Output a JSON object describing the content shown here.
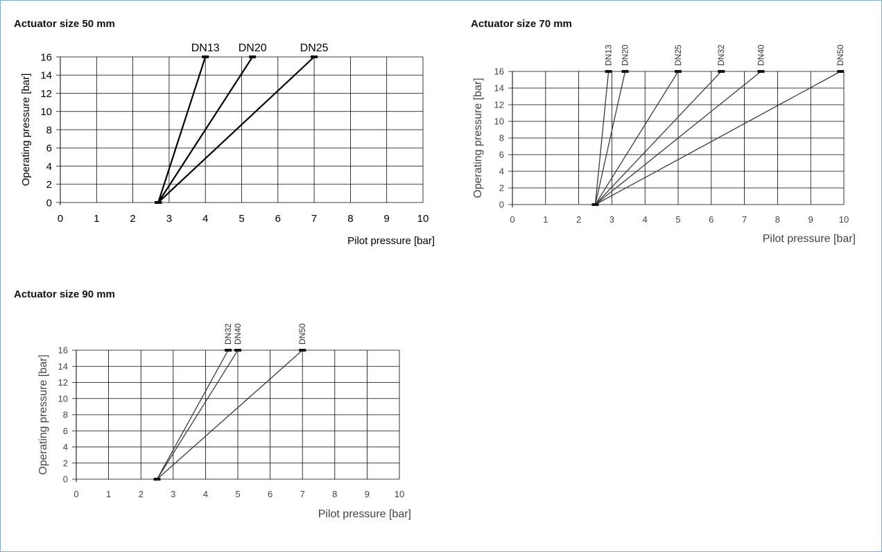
{
  "colors": {
    "frame": "#7fa8c9",
    "grid": "#000000"
  },
  "chart_data": [
    {
      "type": "line",
      "title": "Actuator size 50 mm",
      "xlabel": "Pilot pressure [bar]",
      "ylabel": "Operating pressure [bar]",
      "xlim": [
        0,
        10
      ],
      "ylim": [
        0,
        16
      ],
      "x_ticks": [
        "0",
        "1",
        "2",
        "3",
        "4",
        "5",
        "6",
        "7",
        "8",
        "9",
        "10"
      ],
      "y_ticks": [
        "0",
        "2",
        "4",
        "6",
        "8",
        "10",
        "12",
        "14",
        "16"
      ],
      "grid": true,
      "series_label_orientation": "horizontal",
      "series": [
        {
          "name": "DN13",
          "x": [
            2.7,
            4.0
          ],
          "y": [
            0,
            16
          ]
        },
        {
          "name": "DN20",
          "x": [
            2.7,
            5.3
          ],
          "y": [
            0,
            16
          ]
        },
        {
          "name": "DN25",
          "x": [
            2.7,
            7.0
          ],
          "y": [
            0,
            16
          ]
        }
      ]
    },
    {
      "type": "line",
      "title": "Actuator size 70 mm",
      "xlabel": "Pilot pressure [bar]",
      "ylabel": "Operating pressure [bar]",
      "xlim": [
        0,
        10
      ],
      "ylim": [
        0,
        16
      ],
      "x_ticks": [
        "0",
        "1",
        "2",
        "3",
        "4",
        "5",
        "6",
        "7",
        "8",
        "9",
        "10"
      ],
      "y_ticks": [
        "0",
        "2",
        "4",
        "6",
        "8",
        "10",
        "12",
        "14",
        "16"
      ],
      "grid": true,
      "series_label_orientation": "vertical",
      "series": [
        {
          "name": "DN13",
          "x": [
            2.5,
            2.9
          ],
          "y": [
            0,
            16
          ]
        },
        {
          "name": "DN20",
          "x": [
            2.5,
            3.4
          ],
          "y": [
            0,
            16
          ]
        },
        {
          "name": "DN25",
          "x": [
            2.5,
            5.0
          ],
          "y": [
            0,
            16
          ]
        },
        {
          "name": "DN32",
          "x": [
            2.5,
            6.3
          ],
          "y": [
            0,
            16
          ]
        },
        {
          "name": "DN40",
          "x": [
            2.5,
            7.5
          ],
          "y": [
            0,
            16
          ]
        },
        {
          "name": "DN50",
          "x": [
            2.5,
            9.9
          ],
          "y": [
            0,
            16
          ]
        }
      ]
    },
    {
      "type": "line",
      "title": "Actuator size 90 mm",
      "xlabel": "Pilot pressure [bar]",
      "ylabel": "Operating pressure [bar]",
      "xlim": [
        0,
        10
      ],
      "ylim": [
        0,
        16
      ],
      "x_ticks": [
        "0",
        "1",
        "2",
        "3",
        "4",
        "5",
        "6",
        "7",
        "8",
        "9",
        "10"
      ],
      "y_ticks": [
        "0",
        "2",
        "4",
        "6",
        "8",
        "10",
        "12",
        "14",
        "16"
      ],
      "grid": true,
      "series_label_orientation": "vertical",
      "series": [
        {
          "name": "DN32",
          "x": [
            2.5,
            4.7
          ],
          "y": [
            0,
            16
          ]
        },
        {
          "name": "DN40",
          "x": [
            2.5,
            5.0
          ],
          "y": [
            0,
            16
          ]
        },
        {
          "name": "DN50",
          "x": [
            2.5,
            7.0
          ],
          "y": [
            0,
            16
          ]
        }
      ]
    }
  ]
}
